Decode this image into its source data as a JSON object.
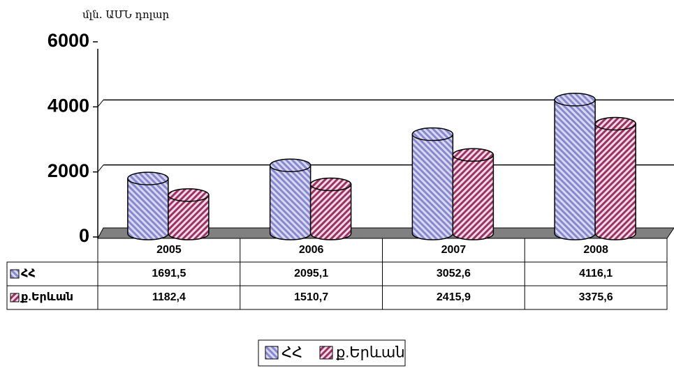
{
  "chart_data": {
    "type": "bar",
    "axis_label": "մլն. ԱՄՆ դոլար",
    "categories": [
      "2005",
      "2006",
      "2007",
      "2008"
    ],
    "series": [
      {
        "name": "ՀՀ",
        "color": "#8888cc",
        "values": [
          1691.5,
          2095.1,
          3052.6,
          4116.1
        ],
        "value_labels": [
          "1691,5",
          "2095,1",
          "3052,6",
          "4116,1"
        ]
      },
      {
        "name": "ք.Երևան",
        "color": "#993366",
        "values": [
          1182.4,
          1510.7,
          2415.9,
          3375.6
        ],
        "value_labels": [
          "1182,4",
          "1510,7",
          "2415,9",
          "3375,6"
        ]
      }
    ],
    "ylim": [
      0,
      6000
    ],
    "yticks": [
      0,
      2000,
      4000,
      6000
    ],
    "grid": true
  }
}
